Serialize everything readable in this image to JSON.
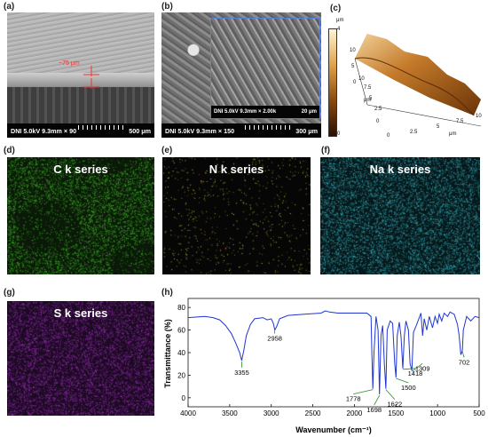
{
  "labels": {
    "a": "(a)",
    "b": "(b)",
    "c": "(c)",
    "d": "(d)",
    "e": "(e)",
    "f": "(f)",
    "g": "(g)",
    "h": "(h)"
  },
  "panel_a": {
    "annotation": "~75 μm",
    "footer_left": "DNI 5.0kV 9.3mm × 90",
    "footer_right": "500 μm"
  },
  "panel_b": {
    "footer_left": "DNI 5.0kV 9.3mm × 150",
    "footer_right": "300 μm",
    "inset_left": "DNI 5.0kV 9.3mm × 2.00k",
    "inset_right": "20 μm"
  },
  "panel_c": {
    "unit": "μm",
    "colorbar_top": "4",
    "colorbar_bottom": "0",
    "z_ticks": [
      "10",
      "5",
      "0"
    ],
    "x_ticks": [
      "0",
      "2.5",
      "5",
      "7.5",
      "10"
    ],
    "y_ticks": [
      "0",
      "2.5",
      "5",
      "7.5",
      "10"
    ],
    "x_unit": "μm",
    "y_unit": "μm"
  },
  "maps": {
    "c": {
      "title": "C k series",
      "color": "#3fbf2a"
    },
    "n": {
      "title": "N k series",
      "color": "#d8d23a"
    },
    "na": {
      "title": "Na k series",
      "color": "#36b7c4"
    },
    "s": {
      "title": "S k series",
      "color": "#a02fc0"
    }
  },
  "chart_data": {
    "type": "line",
    "xlabel": "Wavenumber (cm⁻¹)",
    "ylabel": "Transmittance (%)",
    "xlim": [
      4000,
      500
    ],
    "ylim": [
      -8,
      88
    ],
    "xticks": [
      4000,
      3500,
      3000,
      2500,
      2000,
      1500,
      1000,
      500
    ],
    "yticks": [
      0,
      20,
      40,
      60,
      80
    ],
    "series": [
      {
        "color": "#1f35d6",
        "points": [
          [
            4000,
            71
          ],
          [
            3800,
            72
          ],
          [
            3700,
            71
          ],
          [
            3620,
            69
          ],
          [
            3550,
            64
          ],
          [
            3480,
            57
          ],
          [
            3430,
            49
          ],
          [
            3380,
            40
          ],
          [
            3355,
            33
          ],
          [
            3330,
            42
          ],
          [
            3300,
            55
          ],
          [
            3250,
            65
          ],
          [
            3200,
            70
          ],
          [
            3100,
            71
          ],
          [
            3050,
            69
          ],
          [
            3000,
            70
          ],
          [
            2975,
            66
          ],
          [
            2958,
            60
          ],
          [
            2935,
            63
          ],
          [
            2900,
            70
          ],
          [
            2800,
            73
          ],
          [
            2600,
            74
          ],
          [
            2400,
            75
          ],
          [
            2350,
            77
          ],
          [
            2300,
            76
          ],
          [
            2200,
            75
          ],
          [
            2000,
            75
          ],
          [
            1900,
            75
          ],
          [
            1850,
            75
          ],
          [
            1800,
            72
          ],
          [
            1790,
            40
          ],
          [
            1778,
            8
          ],
          [
            1765,
            40
          ],
          [
            1740,
            72
          ],
          [
            1715,
            60
          ],
          [
            1698,
            3
          ],
          [
            1680,
            55
          ],
          [
            1660,
            64
          ],
          [
            1640,
            30
          ],
          [
            1622,
            8
          ],
          [
            1605,
            60
          ],
          [
            1570,
            68
          ],
          [
            1540,
            66
          ],
          [
            1515,
            30
          ],
          [
            1500,
            18
          ],
          [
            1485,
            55
          ],
          [
            1460,
            67
          ],
          [
            1440,
            55
          ],
          [
            1418,
            26
          ],
          [
            1400,
            55
          ],
          [
            1380,
            68
          ],
          [
            1350,
            60
          ],
          [
            1330,
            30
          ],
          [
            1309,
            24
          ],
          [
            1290,
            58
          ],
          [
            1250,
            65
          ],
          [
            1200,
            75
          ],
          [
            1180,
            55
          ],
          [
            1160,
            70
          ],
          [
            1130,
            60
          ],
          [
            1100,
            72
          ],
          [
            1060,
            62
          ],
          [
            1030,
            72
          ],
          [
            1000,
            66
          ],
          [
            980,
            74
          ],
          [
            950,
            68
          ],
          [
            920,
            75
          ],
          [
            880,
            72
          ],
          [
            850,
            76
          ],
          [
            800,
            74
          ],
          [
            760,
            65
          ],
          [
            740,
            55
          ],
          [
            720,
            38
          ],
          [
            702,
            42
          ],
          [
            690,
            60
          ],
          [
            650,
            72
          ],
          [
            600,
            68
          ],
          [
            550,
            72
          ],
          [
            500,
            71
          ]
        ]
      }
    ],
    "annotations": [
      {
        "x": 3355,
        "label": "3355"
      },
      {
        "x": 2958,
        "label": "2958"
      },
      {
        "x": 1778,
        "label": "1778"
      },
      {
        "x": 1698,
        "label": "1698"
      },
      {
        "x": 1622,
        "label": "1622"
      },
      {
        "x": 1500,
        "label": "1500"
      },
      {
        "x": 1418,
        "label": "1418"
      },
      {
        "x": 1309,
        "label": "1309"
      },
      {
        "x": 702,
        "label": "702"
      }
    ]
  }
}
